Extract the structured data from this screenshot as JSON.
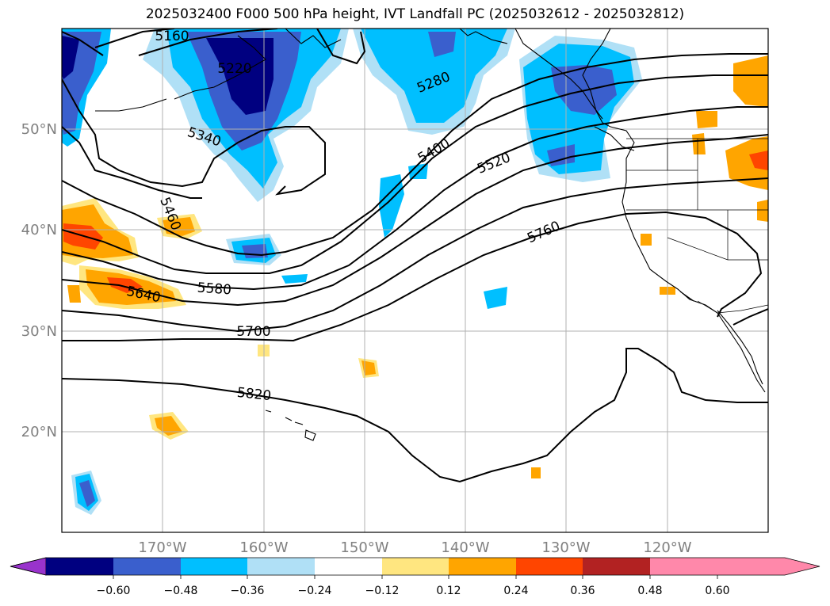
{
  "title": "2025032400 F000 500 hPa height, IVT Landfall PC (2025032612 - 2025032812)",
  "lat_labels": [
    "50°N",
    "40°N",
    "30°N",
    "20°N"
  ],
  "lon_labels": [
    "170°W",
    "160°W",
    "150°W",
    "140°W",
    "130°W",
    "120°W"
  ],
  "contour_labels": [
    "5160",
    "5220",
    "5280",
    "5340",
    "5400",
    "5460",
    "5520",
    "5580",
    "5640",
    "5700",
    "5760",
    "5820"
  ],
  "colorbar": {
    "ticks": [
      "−0.60",
      "−0.48",
      "−0.36",
      "−0.24",
      "−0.12",
      "0.12",
      "0.24",
      "0.36",
      "0.48",
      "0.60"
    ],
    "colors": [
      "#9933cc",
      "#000080",
      "#3a5fcd",
      "#00bfff",
      "#b0e0f6",
      "#ffffff",
      "#ffe680",
      "#ffa500",
      "#ff4500",
      "#b22222",
      "#ff88aa"
    ]
  },
  "colors": {
    "negative_strong": "#000080",
    "negative_mid": "#3a5fcd",
    "negative": "#00bfff",
    "negative_light": "#b0e0f6",
    "positive_light": "#ffe680",
    "positive": "#ffa500",
    "positive_strong": "#ff4500"
  }
}
